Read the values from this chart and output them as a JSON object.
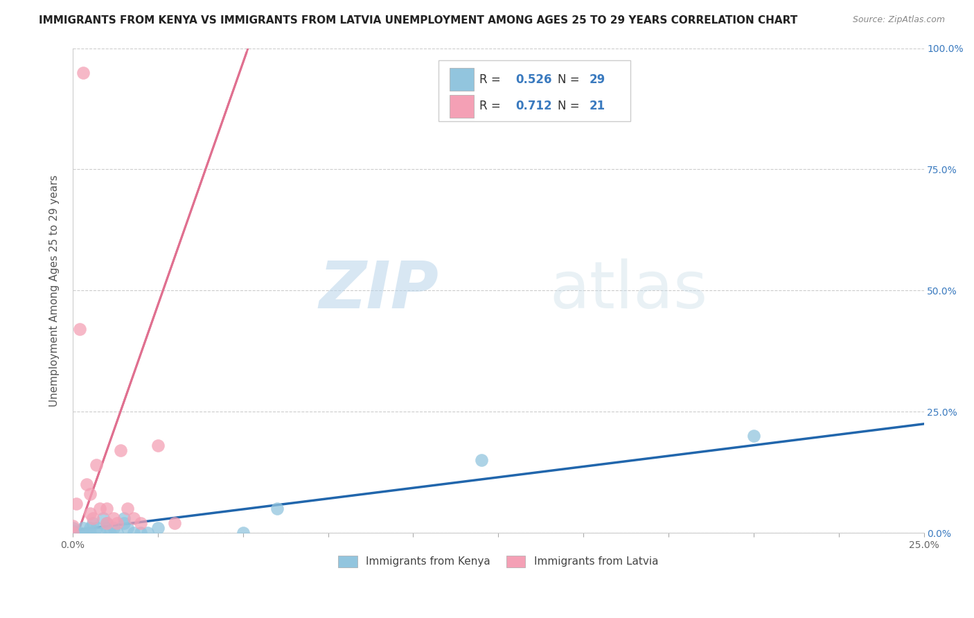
{
  "title": "IMMIGRANTS FROM KENYA VS IMMIGRANTS FROM LATVIA UNEMPLOYMENT AMONG AGES 25 TO 29 YEARS CORRELATION CHART",
  "source": "Source: ZipAtlas.com",
  "ylabel": "Unemployment Among Ages 25 to 29 years",
  "xlim": [
    0.0,
    0.25
  ],
  "ylim": [
    0.0,
    1.0
  ],
  "xtick_labels": [
    "0.0%",
    "25.0%"
  ],
  "ytick_labels": [
    "0.0%",
    "25.0%",
    "50.0%",
    "75.0%",
    "100.0%"
  ],
  "ytick_vals": [
    0.0,
    0.25,
    0.5,
    0.75,
    1.0
  ],
  "xtick_vals": [
    0.0,
    0.25
  ],
  "kenya_color": "#92c5de",
  "latvia_color": "#f4a0b5",
  "kenya_line_color": "#2166ac",
  "latvia_line_color": "#e07090",
  "R_kenya": 0.526,
  "N_kenya": 29,
  "R_latvia": 0.712,
  "N_latvia": 21,
  "kenya_x": [
    0.0,
    0.0,
    0.0,
    0.001,
    0.002,
    0.003,
    0.004,
    0.005,
    0.005,
    0.006,
    0.007,
    0.008,
    0.009,
    0.01,
    0.01,
    0.011,
    0.012,
    0.013,
    0.015,
    0.015,
    0.016,
    0.018,
    0.02,
    0.022,
    0.025,
    0.05,
    0.06,
    0.12,
    0.2
  ],
  "kenya_y": [
    0.0,
    0.005,
    0.01,
    0.0,
    0.0,
    0.01,
    0.0,
    0.0,
    0.01,
    0.02,
    0.01,
    0.0,
    0.03,
    0.02,
    0.01,
    0.0,
    0.01,
    0.0,
    0.02,
    0.03,
    0.01,
    0.0,
    0.0,
    0.0,
    0.01,
    0.0,
    0.05,
    0.15,
    0.2
  ],
  "latvia_x": [
    0.0,
    0.0,
    0.001,
    0.002,
    0.003,
    0.004,
    0.005,
    0.005,
    0.006,
    0.007,
    0.008,
    0.01,
    0.01,
    0.012,
    0.013,
    0.014,
    0.016,
    0.018,
    0.02,
    0.025,
    0.03
  ],
  "latvia_y": [
    0.0,
    0.015,
    0.06,
    0.42,
    0.95,
    0.1,
    0.08,
    0.04,
    0.03,
    0.14,
    0.05,
    0.05,
    0.02,
    0.03,
    0.02,
    0.17,
    0.05,
    0.03,
    0.02,
    0.18,
    0.02
  ],
  "latvia_line_slope": 20.0,
  "latvia_line_intercept": -0.03,
  "kenya_line_slope": 0.88,
  "kenya_line_intercept": 0.005,
  "watermark_zip": "ZIP",
  "watermark_atlas": "atlas",
  "title_fontsize": 11,
  "axis_label_fontsize": 11,
  "tick_fontsize": 10,
  "grid_color": "#cccccc",
  "background_color": "#ffffff",
  "legend_R_color": "#3a7abf",
  "legend_N_color": "#3a7abf"
}
